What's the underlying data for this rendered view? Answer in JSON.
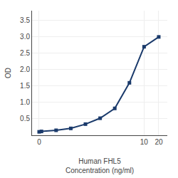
{
  "chart_data": {
    "type": "line",
    "xlabel": "Human FHL5\nConcentration (ng/ml)",
    "ylabel": "OD",
    "x": [
      0.07,
      0.078,
      0.156,
      0.3125,
      0.625,
      1.25,
      2.5,
      5.0,
      10.0,
      20.0
    ],
    "values": [
      0.105,
      0.118,
      0.152,
      0.21,
      0.34,
      0.52,
      0.82,
      1.6,
      2.7,
      3.0
    ],
    "color": "#1a3a6b",
    "marker": "square",
    "line_style": "solid",
    "log": "x",
    "xlim": [
      0.05,
      30
    ],
    "xticks": [
      {
        "value": 0.07,
        "label": "0"
      },
      10,
      20
    ],
    "ylim": [
      0,
      3.8
    ],
    "yticks": [
      0.5,
      {
        "value": 1.0,
        "label": "1.0"
      },
      1.5,
      {
        "value": 2.0,
        "label": "2.0"
      },
      2.5,
      {
        "value": 3.0,
        "label": "3.0"
      },
      3.5
    ],
    "grid": true
  }
}
